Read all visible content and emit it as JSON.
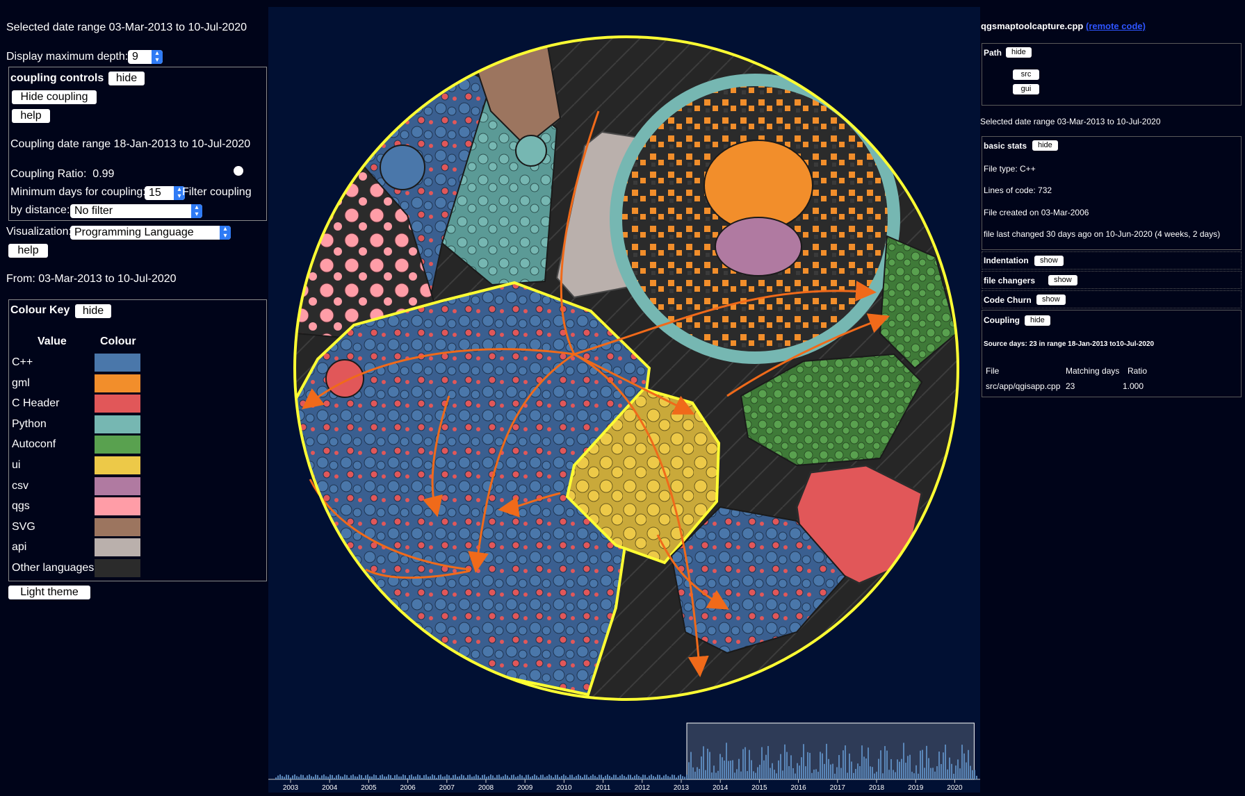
{
  "left": {
    "date_range": "Selected date range 03-Mar-2013 to 10-Jul-2020",
    "max_depth_label": "Display maximum depth:",
    "max_depth_value": "9",
    "coupling_title": "coupling controls",
    "coupling_hide": "hide",
    "hide_coupling": "Hide coupling",
    "help": "help",
    "coupling_date_range": "Coupling date range 18-Jan-2013 to 10-Jul-2020",
    "coupling_ratio_label": "Coupling Ratio:",
    "coupling_ratio_value": "0.99",
    "min_days_label": "Minimum days for coupling:",
    "min_days_value": "15",
    "filter_label_1": "Filter coupling",
    "filter_label_2": "by distance:",
    "filter_value": "No filter",
    "visualization_label": "Visualization:",
    "visualization_value": "Programming Language",
    "help2": "help",
    "from": "From: 03-Mar-2013 to 10-Jul-2020",
    "key_title": "Colour Key",
    "key_hide": "hide",
    "key_header_value": "Value",
    "key_header_colour": "Colour",
    "key": [
      {
        "label": "C++",
        "color": "#4a77aa"
      },
      {
        "label": "gml",
        "color": "#f28e2b"
      },
      {
        "label": "C Header",
        "color": "#e15759"
      },
      {
        "label": "Python",
        "color": "#76b7b2"
      },
      {
        "label": "Autoconf",
        "color": "#59a14f"
      },
      {
        "label": "ui",
        "color": "#edc948"
      },
      {
        "label": "csv",
        "color": "#b07aa1"
      },
      {
        "label": "qgs",
        "color": "#ff9da7"
      },
      {
        "label": "SVG",
        "color": "#9c755f"
      },
      {
        "label": "api",
        "color": "#bab0ac"
      },
      {
        "label": "Other languages",
        "color": "#2b2b2b"
      }
    ],
    "light_theme": "Light theme"
  },
  "right": {
    "filename": "qgsmaptoolcapture.cpp",
    "remote_code": "(remote code)",
    "path_label": "Path",
    "path_hide": "hide",
    "path_items": [
      "src",
      "gui"
    ],
    "date_range": "Selected date range 03-Mar-2013 to 10-Jul-2020",
    "basic_stats": "basic stats",
    "basic_hide": "hide",
    "file_type": "File type: C++",
    "lines_of_code": "Lines of code: 732",
    "created": "File created on 03-Mar-2006",
    "last_changed": "file last changed 30 days ago on 10-Jun-2020 (4 weeks, 2 days)",
    "indentation": "Indentation",
    "file_changers": "file changers",
    "code_churn": "Code Churn",
    "show": "show",
    "coupling": "Coupling",
    "coupling_hide": "hide",
    "source_days": "Source days: 23 in range 18-Jan-2013 to10-Jul-2020",
    "table_headers": [
      "File",
      "Matching days",
      "Ratio"
    ],
    "table_row": {
      "file": "src/app/qgisapp.cpp",
      "days": "23",
      "ratio": "1.000"
    }
  },
  "timeline": {
    "years": [
      "2003",
      "2004",
      "2005",
      "2006",
      "2007",
      "2008",
      "2009",
      "2010",
      "2011",
      "2012",
      "2013",
      "2014",
      "2015",
      "2016",
      "2017",
      "2018",
      "2019",
      "2020"
    ],
    "selection_start": "2013",
    "selection_end": "2020"
  },
  "colors": {
    "background": "#000419",
    "viz_background": "#011033",
    "highlight": "#ffff33",
    "coupling_arrow": "#f06a1a"
  }
}
